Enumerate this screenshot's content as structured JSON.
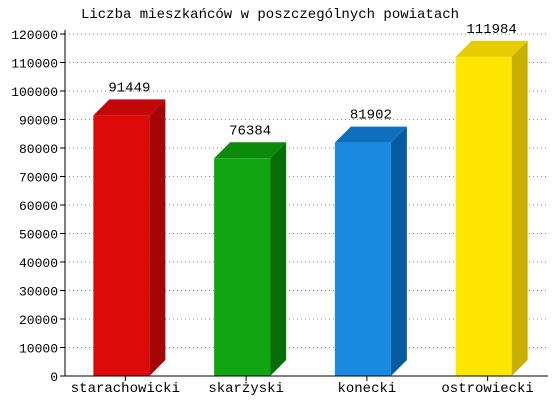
{
  "chart_data": {
    "type": "bar",
    "title": "Liczba mieszkańców w poszczególnych powiatach",
    "xlabel": "",
    "ylabel": "",
    "ylim": [
      0,
      120000
    ],
    "ytick_step": 10000,
    "grid": true,
    "legend": "none",
    "categories": [
      "starachowicki",
      "skarżyski",
      "konecki",
      "ostrowiecki"
    ],
    "values": [
      91449,
      76384,
      81902,
      111984
    ],
    "data_labels": [
      "91449",
      "76384",
      "81902",
      "111984"
    ],
    "colors": [
      {
        "front": "#dd0a0a",
        "top": "#c30707",
        "side": "#a50505"
      },
      {
        "front": "#12a512",
        "top": "#0b8a0b",
        "side": "#066e06"
      },
      {
        "front": "#1a8ae0",
        "top": "#0e6fbe",
        "side": "#075aa0"
      },
      {
        "front": "#ffe600",
        "top": "#e6cc00",
        "side": "#c9b000"
      }
    ]
  }
}
